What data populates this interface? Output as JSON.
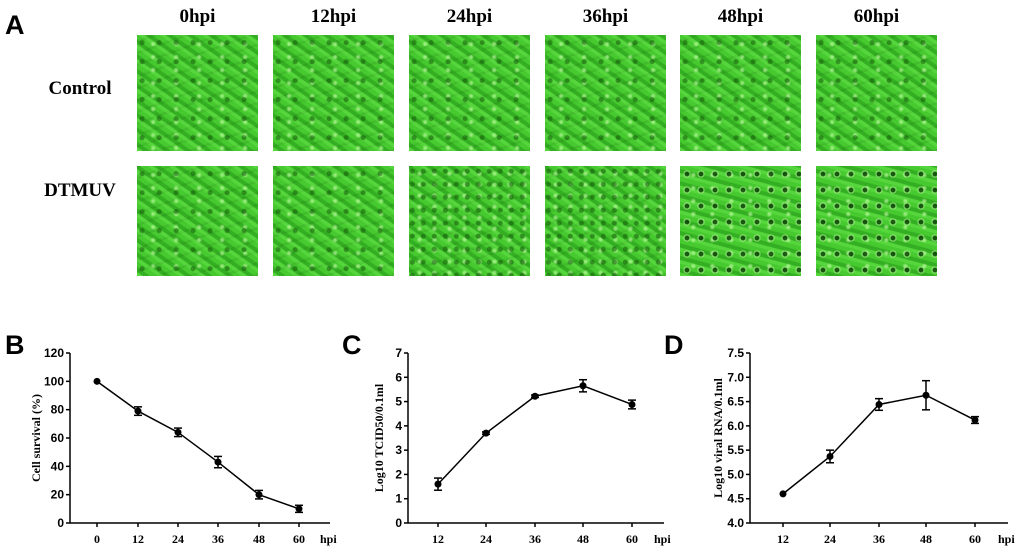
{
  "figure": {
    "panel_labels": [
      "A",
      "B",
      "C",
      "D"
    ],
    "columns": [
      "0hpi",
      "12hpi",
      "24hpi",
      "36hpi",
      "48hpi",
      "60hpi"
    ],
    "rows": [
      "Control",
      "DTMUV"
    ],
    "image_tint": "#3fc62a"
  },
  "chart_data": [
    {
      "type": "line",
      "panel": "B",
      "x": [
        0,
        12,
        24,
        36,
        48,
        60
      ],
      "values": [
        100,
        79,
        64,
        43,
        20,
        10
      ],
      "errors": [
        0,
        3,
        3,
        4,
        3,
        2.5
      ],
      "xlabel": "hpi",
      "ylabel": "Cell survival (%)",
      "ylim": [
        0,
        120
      ],
      "yticks": [
        0,
        20,
        40,
        60,
        80,
        100,
        120
      ],
      "xtick_labels": [
        "0",
        "12",
        "24",
        "36",
        "48",
        "60"
      ]
    },
    {
      "type": "line",
      "panel": "C",
      "x": [
        12,
        24,
        36,
        48,
        60
      ],
      "values": [
        1.6,
        3.7,
        5.22,
        5.65,
        4.88
      ],
      "errors": [
        0.25,
        0.05,
        0.05,
        0.25,
        0.18
      ],
      "xlabel": "hpi",
      "ylabel": "Log10 TCID50/0.1ml",
      "ylim": [
        0,
        7
      ],
      "yticks": [
        0,
        1,
        2,
        3,
        4,
        5,
        6,
        7
      ],
      "xtick_labels": [
        "12",
        "24",
        "36",
        "48",
        "60"
      ]
    },
    {
      "type": "line",
      "panel": "D",
      "x": [
        12,
        24,
        36,
        48,
        60
      ],
      "values": [
        4.6,
        5.37,
        6.44,
        6.63,
        6.12
      ],
      "errors": [
        0.02,
        0.13,
        0.12,
        0.3,
        0.07
      ],
      "xlabel": "hpi",
      "ylabel": "Log10 viral RNA/0.1ml",
      "ylim": [
        4.0,
        7.5
      ],
      "yticks": [
        "4.0",
        "4.5",
        "5.0",
        "5.5",
        "6.0",
        "6.5",
        "7.0",
        "7.5"
      ],
      "xtick_labels": [
        "12",
        "24",
        "36",
        "48",
        "60"
      ]
    }
  ]
}
